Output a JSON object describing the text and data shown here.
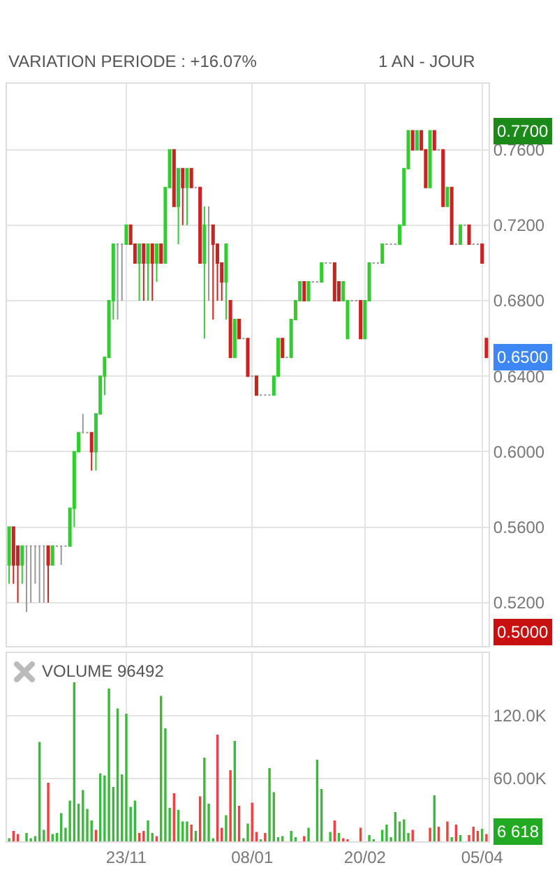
{
  "chart_data": [
    {
      "type": "candlestick",
      "title": "VARIATION PERIODE : +16.07%",
      "subtitle": "1 AN - JOUR",
      "categories": [
        null,
        null,
        null,
        null,
        null,
        null,
        null,
        null,
        null,
        null,
        null,
        null,
        null,
        null,
        null,
        null,
        null,
        null,
        null,
        null,
        null,
        null,
        null,
        null,
        null,
        null,
        null,
        null,
        null,
        null,
        null,
        null,
        null,
        null,
        null,
        null,
        null,
        null,
        null,
        null,
        null,
        null,
        null,
        null,
        null,
        null,
        null,
        null,
        null,
        null,
        null,
        null,
        null,
        null,
        null,
        null,
        null,
        null,
        null,
        null,
        null,
        null,
        null,
        null,
        null,
        null,
        null,
        null,
        null,
        null,
        null,
        null,
        null,
        null,
        null,
        null,
        null,
        null,
        null,
        null,
        null,
        null,
        null,
        null,
        null,
        null,
        null,
        null,
        null,
        null,
        null,
        null,
        null,
        null,
        null,
        null,
        null,
        null,
        null,
        null,
        null,
        null,
        null,
        null,
        null,
        null,
        null,
        null,
        null,
        null,
        null
      ],
      "ohlc": [
        [
          0.54,
          0.56,
          0.53,
          0.56
        ],
        [
          0.56,
          0.56,
          0.53,
          0.54
        ],
        [
          0.55,
          0.55,
          0.52,
          0.54
        ],
        [
          0.54,
          0.55,
          0.53,
          0.55
        ],
        [
          0.55,
          0.55,
          0.515,
          0.55
        ],
        [
          0.55,
          0.55,
          0.52,
          0.55
        ],
        [
          0.55,
          0.55,
          0.53,
          0.55
        ],
        [
          0.55,
          0.55,
          0.52,
          0.55
        ],
        [
          0.55,
          0.55,
          0.52,
          0.55
        ],
        [
          0.55,
          0.55,
          0.52,
          0.54
        ],
        [
          0.54,
          0.55,
          0.54,
          0.55
        ],
        [
          0.55,
          0.55,
          0.55,
          0.55
        ],
        [
          0.55,
          0.55,
          0.54,
          0.55
        ],
        [
          0.55,
          0.55,
          0.55,
          0.55
        ],
        [
          0.55,
          0.57,
          0.55,
          0.57
        ],
        [
          0.57,
          0.6,
          0.56,
          0.6
        ],
        [
          0.6,
          0.61,
          0.6,
          0.61
        ],
        [
          0.61,
          0.62,
          0.61,
          0.61
        ],
        [
          0.61,
          0.61,
          0.61,
          0.61
        ],
        [
          0.61,
          0.61,
          0.59,
          0.6
        ],
        [
          0.6,
          0.62,
          0.59,
          0.62
        ],
        [
          0.62,
          0.64,
          0.62,
          0.64
        ],
        [
          0.64,
          0.65,
          0.63,
          0.65
        ],
        [
          0.65,
          0.68,
          0.65,
          0.68
        ],
        [
          0.68,
          0.71,
          0.67,
          0.71
        ],
        [
          0.71,
          0.71,
          0.67,
          0.71
        ],
        [
          0.71,
          0.71,
          0.68,
          0.71
        ],
        [
          0.71,
          0.72,
          0.71,
          0.72
        ],
        [
          0.72,
          0.72,
          0.71,
          0.71
        ],
        [
          0.71,
          0.71,
          0.7,
          0.7
        ],
        [
          0.7,
          0.71,
          0.68,
          0.71
        ],
        [
          0.71,
          0.71,
          0.68,
          0.7
        ],
        [
          0.7,
          0.71,
          0.68,
          0.71
        ],
        [
          0.71,
          0.71,
          0.68,
          0.7
        ],
        [
          0.7,
          0.71,
          0.69,
          0.71
        ],
        [
          0.71,
          0.71,
          0.7,
          0.7
        ],
        [
          0.7,
          0.74,
          0.7,
          0.74
        ],
        [
          0.74,
          0.76,
          0.74,
          0.76
        ],
        [
          0.76,
          0.76,
          0.73,
          0.73
        ],
        [
          0.73,
          0.75,
          0.71,
          0.75
        ],
        [
          0.75,
          0.75,
          0.72,
          0.74
        ],
        [
          0.74,
          0.75,
          0.72,
          0.75
        ],
        [
          0.75,
          0.75,
          0.74,
          0.74
        ],
        [
          0.74,
          0.74,
          0.74,
          0.74
        ],
        [
          0.74,
          0.74,
          0.7,
          0.7
        ],
        [
          0.7,
          0.73,
          0.66,
          0.72
        ],
        [
          0.72,
          0.73,
          0.68,
          0.72
        ],
        [
          0.72,
          0.72,
          0.67,
          0.71
        ],
        [
          0.71,
          0.71,
          0.68,
          0.7
        ],
        [
          0.7,
          0.7,
          0.68,
          0.69
        ],
        [
          0.69,
          0.71,
          0.67,
          0.71
        ],
        [
          0.68,
          0.68,
          0.65,
          0.65
        ],
        [
          0.65,
          0.67,
          0.65,
          0.67
        ],
        [
          0.67,
          0.67,
          0.66,
          0.66
        ],
        [
          0.66,
          0.66,
          0.66,
          0.66
        ],
        [
          0.66,
          0.66,
          0.64,
          0.64
        ],
        [
          0.64,
          0.64,
          0.64,
          0.64
        ],
        [
          0.64,
          0.64,
          0.63,
          0.63
        ],
        [
          0.63,
          0.63,
          0.63,
          0.63
        ],
        [
          0.63,
          0.63,
          0.63,
          0.63
        ],
        [
          0.63,
          0.63,
          0.63,
          0.63
        ],
        [
          0.63,
          0.64,
          0.63,
          0.64
        ],
        [
          0.64,
          0.66,
          0.64,
          0.66
        ],
        [
          0.66,
          0.66,
          0.65,
          0.65
        ],
        [
          0.65,
          0.65,
          0.65,
          0.65
        ],
        [
          0.65,
          0.67,
          0.65,
          0.67
        ],
        [
          0.67,
          0.68,
          0.67,
          0.68
        ],
        [
          0.68,
          0.69,
          0.68,
          0.69
        ],
        [
          0.69,
          0.69,
          0.68,
          0.68
        ],
        [
          0.68,
          0.69,
          0.68,
          0.69
        ],
        [
          0.69,
          0.69,
          0.69,
          0.69
        ],
        [
          0.69,
          0.69,
          0.69,
          0.69
        ],
        [
          0.69,
          0.7,
          0.69,
          0.7
        ],
        [
          0.7,
          0.7,
          0.7,
          0.7
        ],
        [
          0.7,
          0.7,
          0.7,
          0.7
        ],
        [
          0.7,
          0.7,
          0.68,
          0.68
        ],
        [
          0.69,
          0.69,
          0.68,
          0.68
        ],
        [
          0.68,
          0.69,
          0.68,
          0.69
        ],
        [
          0.66,
          0.68,
          0.66,
          0.68
        ],
        [
          0.68,
          0.68,
          0.68,
          0.68
        ],
        [
          0.68,
          0.68,
          0.68,
          0.68
        ],
        [
          0.68,
          0.68,
          0.66,
          0.66
        ],
        [
          0.66,
          0.68,
          0.66,
          0.68
        ],
        [
          0.68,
          0.7,
          0.68,
          0.7
        ],
        [
          0.7,
          0.7,
          0.7,
          0.7
        ],
        [
          0.7,
          0.7,
          0.7,
          0.7
        ],
        [
          0.7,
          0.71,
          0.7,
          0.71
        ],
        [
          0.71,
          0.71,
          0.71,
          0.71
        ],
        [
          0.71,
          0.71,
          0.71,
          0.71
        ],
        [
          0.71,
          0.71,
          0.71,
          0.71
        ],
        [
          0.71,
          0.72,
          0.71,
          0.72
        ],
        [
          0.72,
          0.75,
          0.72,
          0.75
        ],
        [
          0.75,
          0.77,
          0.75,
          0.77
        ],
        [
          0.77,
          0.77,
          0.76,
          0.76
        ],
        [
          0.76,
          0.77,
          0.76,
          0.77
        ],
        [
          0.77,
          0.77,
          0.76,
          0.76
        ],
        [
          0.76,
          0.76,
          0.74,
          0.74
        ],
        [
          0.74,
          0.77,
          0.74,
          0.77
        ],
        [
          0.77,
          0.77,
          0.76,
          0.76
        ],
        [
          0.76,
          0.76,
          0.76,
          0.76
        ],
        [
          0.76,
          0.76,
          0.73,
          0.73
        ],
        [
          0.73,
          0.74,
          0.73,
          0.74
        ],
        [
          0.74,
          0.74,
          0.71,
          0.71
        ],
        [
          0.71,
          0.71,
          0.71,
          0.71
        ],
        [
          0.71,
          0.72,
          0.71,
          0.72
        ],
        [
          0.72,
          0.72,
          0.72,
          0.72
        ],
        [
          0.72,
          0.72,
          0.71,
          0.71
        ],
        [
          0.71,
          0.71,
          0.71,
          0.71
        ],
        [
          0.71,
          0.71,
          0.71,
          0.71
        ],
        [
          0.71,
          0.71,
          0.7,
          0.7
        ],
        [
          0.66,
          0.66,
          0.65,
          0.65
        ]
      ],
      "colors": [
        "#33cc33",
        "#cc2222",
        "#cc2222",
        "#33cc33",
        "#999999",
        "#999999",
        "#999999",
        "#999999",
        "#999999",
        "#cc2222",
        "#33cc33",
        "#999999",
        "#999999",
        "#999999",
        "#33cc33",
        "#33cc33",
        "#33cc33",
        "#999999",
        "#999999",
        "#cc2222",
        "#33cc33",
        "#33cc33",
        "#33cc33",
        "#33cc33",
        "#33cc33",
        "#999999",
        "#999999",
        "#33cc33",
        "#cc2222",
        "#cc2222",
        "#33cc33",
        "#cc2222",
        "#33cc33",
        "#cc2222",
        "#33cc33",
        "#cc2222",
        "#33cc33",
        "#33cc33",
        "#cc2222",
        "#33cc33",
        "#cc2222",
        "#33cc33",
        "#cc2222",
        "#999999",
        "#cc2222",
        "#33cc33",
        "#999999",
        "#cc2222",
        "#cc2222",
        "#cc2222",
        "#33cc33",
        "#cc2222",
        "#33cc33",
        "#cc2222",
        "#999999",
        "#cc2222",
        "#999999",
        "#cc2222",
        "#999999",
        "#999999",
        "#999999",
        "#33cc33",
        "#33cc33",
        "#cc2222",
        "#999999",
        "#33cc33",
        "#33cc33",
        "#33cc33",
        "#cc2222",
        "#33cc33",
        "#999999",
        "#999999",
        "#33cc33",
        "#999999",
        "#999999",
        "#cc2222",
        "#cc2222",
        "#33cc33",
        "#33cc33",
        "#999999",
        "#999999",
        "#cc2222",
        "#33cc33",
        "#33cc33",
        "#999999",
        "#999999",
        "#33cc33",
        "#999999",
        "#999999",
        "#999999",
        "#33cc33",
        "#33cc33",
        "#33cc33",
        "#cc2222",
        "#33cc33",
        "#cc2222",
        "#cc2222",
        "#33cc33",
        "#cc2222",
        "#999999",
        "#cc2222",
        "#33cc33",
        "#cc2222",
        "#999999",
        "#33cc33",
        "#999999",
        "#cc2222",
        "#999999",
        "#999999",
        "#cc2222",
        "#cc2222"
      ],
      "ylim": [
        0.497,
        0.795
      ],
      "yticks": [
        {
          "value": 0.52,
          "label": "0.5200"
        },
        {
          "value": 0.56,
          "label": "0.5600"
        },
        {
          "value": 0.6,
          "label": "0.6000"
        },
        {
          "value": 0.64,
          "label": "0.6400"
        },
        {
          "value": 0.68,
          "label": "0.6800"
        },
        {
          "value": 0.72,
          "label": "0.7200"
        },
        {
          "value": 0.76,
          "label": "0.7600"
        }
      ],
      "annotations": [
        "0.7700",
        "0.6500",
        "0.5000"
      ],
      "grid": true,
      "tick_labels": "y",
      "legend": false
    },
    {
      "type": "bar",
      "title": "VOLUME 96492",
      "categories": [
        null,
        null,
        null,
        null,
        null,
        null,
        null,
        null,
        null,
        null,
        null,
        null,
        null,
        null,
        null,
        null,
        null,
        null,
        null,
        null,
        null,
        null,
        null,
        null,
        null,
        null,
        null,
        "23/11",
        null,
        null,
        null,
        null,
        null,
        null,
        null,
        null,
        null,
        null,
        null,
        null,
        null,
        null,
        null,
        null,
        null,
        null,
        null,
        null,
        null,
        null,
        null,
        null,
        null,
        null,
        null,
        null,
        "08/01",
        null,
        null,
        null,
        null,
        null,
        null,
        null,
        null,
        null,
        null,
        null,
        null,
        null,
        null,
        null,
        null,
        null,
        null,
        null,
        null,
        null,
        null,
        null,
        null,
        null,
        "20/02",
        null,
        null,
        null,
        null,
        null,
        null,
        null,
        null,
        null,
        null,
        null,
        null,
        null,
        null,
        null,
        null,
        null,
        null,
        null,
        null,
        null,
        null,
        null,
        null,
        null,
        null,
        "05/04",
        null
      ],
      "values": [
        3000,
        10000,
        7000,
        null,
        8000,
        3000,
        5000,
        95000,
        11000,
        56000,
        7000,
        8000,
        27000,
        13000,
        39000,
        152000,
        36000,
        49000,
        31000,
        20000,
        11000,
        65000,
        63000,
        146000,
        52000,
        127000,
        64000,
        122000,
        33000,
        39000,
        8000,
        10000,
        20000,
        8000,
        5000,
        139000,
        108000,
        32000,
        46000,
        30000,
        19000,
        19000,
        16000,
        10000,
        43000,
        80000,
        36000,
        3000,
        102000,
        13000,
        25000,
        68000,
        96000,
        34000,
        3000,
        17000,
        37000,
        9000,
        2000,
        8000,
        70000,
        47000,
        4000,
        5000,
        null,
        10000,
        4000,
        null,
        5000,
        13000,
        null,
        78000,
        50000,
        null,
        9000,
        20000,
        8000,
        3000,
        2000,
        null,
        null,
        13000,
        null,
        6000,
        2000,
        null,
        11000,
        16000,
        4000,
        28000,
        19000,
        21000,
        8000,
        11000,
        null,
        null,
        null,
        13000,
        44000,
        14000,
        null,
        19000,
        4000,
        16000,
        6000,
        null,
        6000,
        14000,
        10000,
        12000,
        7000
      ],
      "colors": [
        "#3cb83c",
        "#f04040",
        "#f04040",
        null,
        "#3cb83c",
        "#3cb83c",
        "#3cb83c",
        "#3cb83c",
        "#3cb83c",
        "#f04040",
        "#3cb83c",
        "#3cb83c",
        "#3cb83c",
        "#3cb83c",
        "#3cb83c",
        "#3cb83c",
        "#3cb83c",
        "#3cb83c",
        "#3cb83c",
        "#3cb83c",
        "#f04040",
        "#3cb83c",
        "#3cb83c",
        "#3cb83c",
        "#3cb83c",
        "#3cb83c",
        "#3cb83c",
        "#3cb83c",
        "#3cb83c",
        "#3cb83c",
        "#f04040",
        "#f04040",
        "#3cb83c",
        "#3cb83c",
        "#f04040",
        "#3cb83c",
        "#3cb83c",
        "#3cb83c",
        "#f04040",
        "#3cb83c",
        "#3cb83c",
        "#3cb83c",
        "#f04040",
        "#3cb83c",
        "#f04040",
        "#3cb83c",
        "#3cb83c",
        "#3cb83c",
        "#f04040",
        "#f04040",
        "#3cb83c",
        "#f04040",
        "#3cb83c",
        "#f04040",
        "#3cb83c",
        "#3cb83c",
        "#f04040",
        "#f04040",
        "#3cb83c",
        "#f04040",
        "#3cb83c",
        "#3cb83c",
        "#3cb83c",
        "#3cb83c",
        null,
        "#3cb83c",
        "#3cb83c",
        null,
        "#f04040",
        "#3cb83c",
        null,
        "#3cb83c",
        "#3cb83c",
        null,
        "#3cb83c",
        "#f04040",
        "#3cb83c",
        "#f04040",
        "#f04040",
        null,
        null,
        "#f04040",
        null,
        "#3cb83c",
        "#3cb83c",
        null,
        "#3cb83c",
        "#3cb83c",
        "#3cb83c",
        "#3cb83c",
        "#3cb83c",
        "#3cb83c",
        "#3cb83c",
        "#f04040",
        null,
        null,
        null,
        "#f04040",
        "#3cb83c",
        "#f04040",
        null,
        "#f04040",
        "#3cb83c",
        "#f04040",
        "#3cb83c",
        null,
        "#f04040",
        "#f04040",
        "#f04040",
        "#3cb83c",
        "#f04040"
      ],
      "ylim": [
        0,
        180000
      ],
      "yticks": [
        {
          "value": 60000,
          "label": "60.00K"
        },
        {
          "value": 120000,
          "label": "120.0K"
        }
      ],
      "annotations": [
        "6 618"
      ],
      "grid": true,
      "legend": false
    }
  ]
}
